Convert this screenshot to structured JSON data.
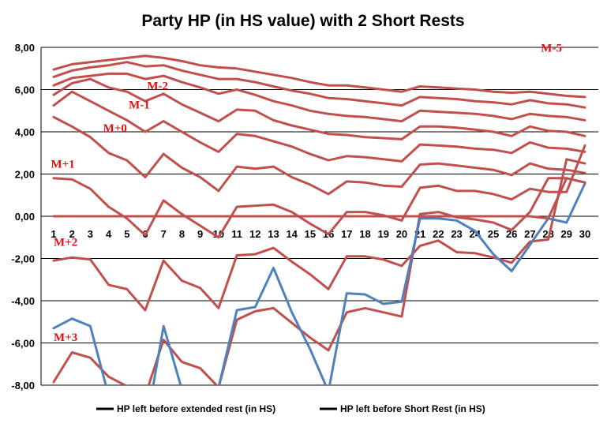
{
  "chart_data": {
    "type": "line",
    "title": "Party HP (in HS value) with 2 Short Rests",
    "xlabel": "",
    "ylabel": "",
    "x": [
      1,
      2,
      3,
      4,
      5,
      6,
      7,
      8,
      9,
      10,
      11,
      12,
      13,
      14,
      15,
      16,
      17,
      18,
      19,
      20,
      21,
      22,
      23,
      24,
      25,
      26,
      27,
      28,
      29,
      30
    ],
    "ylim": [
      -8,
      8
    ],
    "ytick_labels": [
      "-8,00",
      "-6,00",
      "-4,00",
      "-2,00",
      "0,00",
      "2,00",
      "4,00",
      "6,00",
      "8,00"
    ],
    "ytick_values": [
      -8,
      -6,
      -4,
      -2,
      0,
      2,
      4,
      6,
      8
    ],
    "grid": true,
    "legend_position": "bottom",
    "legend": [
      {
        "label": "HP left before extended rest (in HS)",
        "color": "#000000"
      },
      {
        "label": "HP left before Short Rest (in HS)",
        "color": "#000000"
      }
    ],
    "annotations": [
      {
        "text": "M-5",
        "x": 27.6,
        "y": 7.8
      },
      {
        "text": "M-2",
        "x": 6.1,
        "y": 6.0
      },
      {
        "text": "M-1",
        "x": 5.1,
        "y": 5.1
      },
      {
        "text": "M+0",
        "x": 3.7,
        "y": 4.0
      },
      {
        "text": "M+1",
        "x": 0.85,
        "y": 2.3
      },
      {
        "text": "M+2",
        "x": 1.0,
        "y": -1.4
      },
      {
        "text": "M+3",
        "x": 1.0,
        "y": -5.9
      }
    ],
    "series": [
      {
        "color": "#c0504d",
        "values": [
          6.95,
          7.2,
          7.3,
          7.4,
          7.5,
          7.6,
          7.5,
          7.35,
          7.15,
          7.05,
          7.0,
          6.85,
          6.7,
          6.55,
          6.35,
          6.2,
          6.2,
          6.1,
          6.0,
          5.9,
          6.15,
          6.1,
          6.05,
          6.0,
          5.9,
          5.85,
          5.9,
          5.8,
          5.7,
          5.65
        ]
      },
      {
        "color": "#c0504d",
        "values": [
          6.6,
          6.9,
          7.05,
          7.15,
          7.3,
          7.1,
          7.15,
          6.9,
          6.7,
          6.5,
          6.5,
          6.35,
          6.15,
          5.95,
          5.8,
          5.6,
          5.55,
          5.45,
          5.35,
          5.25,
          5.65,
          5.6,
          5.55,
          5.45,
          5.4,
          5.3,
          5.5,
          5.35,
          5.3,
          5.15
        ]
      },
      {
        "color": "#c0504d",
        "values": [
          6.2,
          6.55,
          6.65,
          6.75,
          6.75,
          6.5,
          6.65,
          6.35,
          6.1,
          5.8,
          6.0,
          5.75,
          5.45,
          5.25,
          5.0,
          4.85,
          4.75,
          4.7,
          4.6,
          4.5,
          5.0,
          4.95,
          4.9,
          4.85,
          4.75,
          4.6,
          4.85,
          4.75,
          4.7,
          4.55
        ]
      },
      {
        "color": "#c0504d",
        "values": [
          5.75,
          6.3,
          6.5,
          6.1,
          5.9,
          5.45,
          5.8,
          5.3,
          4.9,
          4.5,
          5.05,
          5.0,
          4.55,
          4.3,
          4.1,
          3.9,
          3.85,
          3.75,
          3.7,
          3.65,
          4.25,
          4.25,
          4.2,
          4.1,
          4.0,
          3.8,
          4.25,
          4.05,
          4.0,
          3.8
        ]
      },
      {
        "color": "#c0504d",
        "values": [
          5.25,
          5.9,
          5.45,
          5.0,
          4.55,
          4.0,
          4.5,
          4.0,
          3.5,
          3.05,
          3.9,
          3.8,
          3.55,
          3.3,
          2.95,
          2.65,
          2.85,
          2.8,
          2.7,
          2.6,
          3.4,
          3.35,
          3.3,
          3.2,
          3.15,
          3.0,
          3.5,
          3.25,
          3.2,
          3.05
        ]
      },
      {
        "color": "#c0504d",
        "values": [
          4.7,
          4.25,
          3.75,
          3.0,
          2.65,
          1.85,
          2.95,
          2.3,
          1.85,
          1.2,
          2.35,
          2.25,
          2.35,
          1.85,
          1.5,
          1.05,
          1.65,
          1.6,
          1.45,
          1.4,
          2.45,
          2.5,
          2.4,
          2.3,
          2.2,
          1.95,
          2.5,
          2.25,
          2.2,
          2.05
        ]
      },
      {
        "color": "#c0504d",
        "values": [
          1.8,
          1.75,
          1.3,
          0.45,
          -0.1,
          -0.9,
          0.75,
          0.1,
          -0.45,
          -1.0,
          0.45,
          0.5,
          0.55,
          0.2,
          -0.35,
          -0.85,
          0.2,
          0.2,
          0.05,
          -0.2,
          1.35,
          1.45,
          1.2,
          1.2,
          1.05,
          0.8,
          1.3,
          1.15,
          1.15,
          3.35
        ]
      },
      {
        "color": "#c0504d",
        "values": [
          -2.1,
          -1.95,
          -2.05,
          -3.25,
          -3.45,
          -4.45,
          -2.1,
          -3.05,
          -3.4,
          -4.35,
          -1.85,
          -1.8,
          -1.5,
          -2.15,
          -2.75,
          -3.45,
          -1.9,
          -1.9,
          -2.05,
          -2.35,
          -1.4,
          -1.15,
          -1.7,
          -1.75,
          -1.95,
          -2.2,
          -1.2,
          -1.1,
          2.7,
          2.5
        ]
      },
      {
        "color": "#c0504d",
        "values": [
          -7.85,
          -6.45,
          -6.7,
          -7.6,
          -8.05,
          -8.5,
          -5.85,
          -6.9,
          -7.2,
          -8.1,
          -4.9,
          -4.5,
          -4.35,
          -5.05,
          -5.75,
          -6.35,
          -4.55,
          -4.35,
          -4.55,
          -4.75,
          0.1,
          0.2,
          -0.05,
          -0.15,
          -0.3,
          -0.65,
          0.2,
          1.8,
          1.8,
          1.6
        ]
      },
      {
        "color": "#4f81bd",
        "values": [
          -5.3,
          -4.85,
          -5.2,
          -8.5,
          -10.0,
          -10.2,
          -5.2,
          -8.2,
          -10.0,
          -8.1,
          -4.45,
          -4.3,
          -2.45,
          -4.55,
          -6.3,
          -8.3,
          -3.65,
          -3.7,
          -4.15,
          -4.05,
          -0.1,
          -0.1,
          -0.2,
          -0.7,
          -1.8,
          -2.6,
          -1.35,
          -0.1,
          -0.3,
          1.55
        ]
      },
      {
        "color": "#c0504d",
        "values": [
          0.0,
          0.0,
          0.0,
          0.0,
          0.0,
          0.0,
          0.0,
          0.0,
          0.0,
          0.0,
          0.0,
          0.0,
          0.0,
          0.0,
          0.0,
          0.0,
          0.0,
          0.0,
          0.0,
          0.0,
          0.0,
          0.0,
          0.0,
          0.0,
          0.0,
          0.0,
          0.0,
          -0.1,
          1.8,
          1.6
        ]
      }
    ]
  }
}
